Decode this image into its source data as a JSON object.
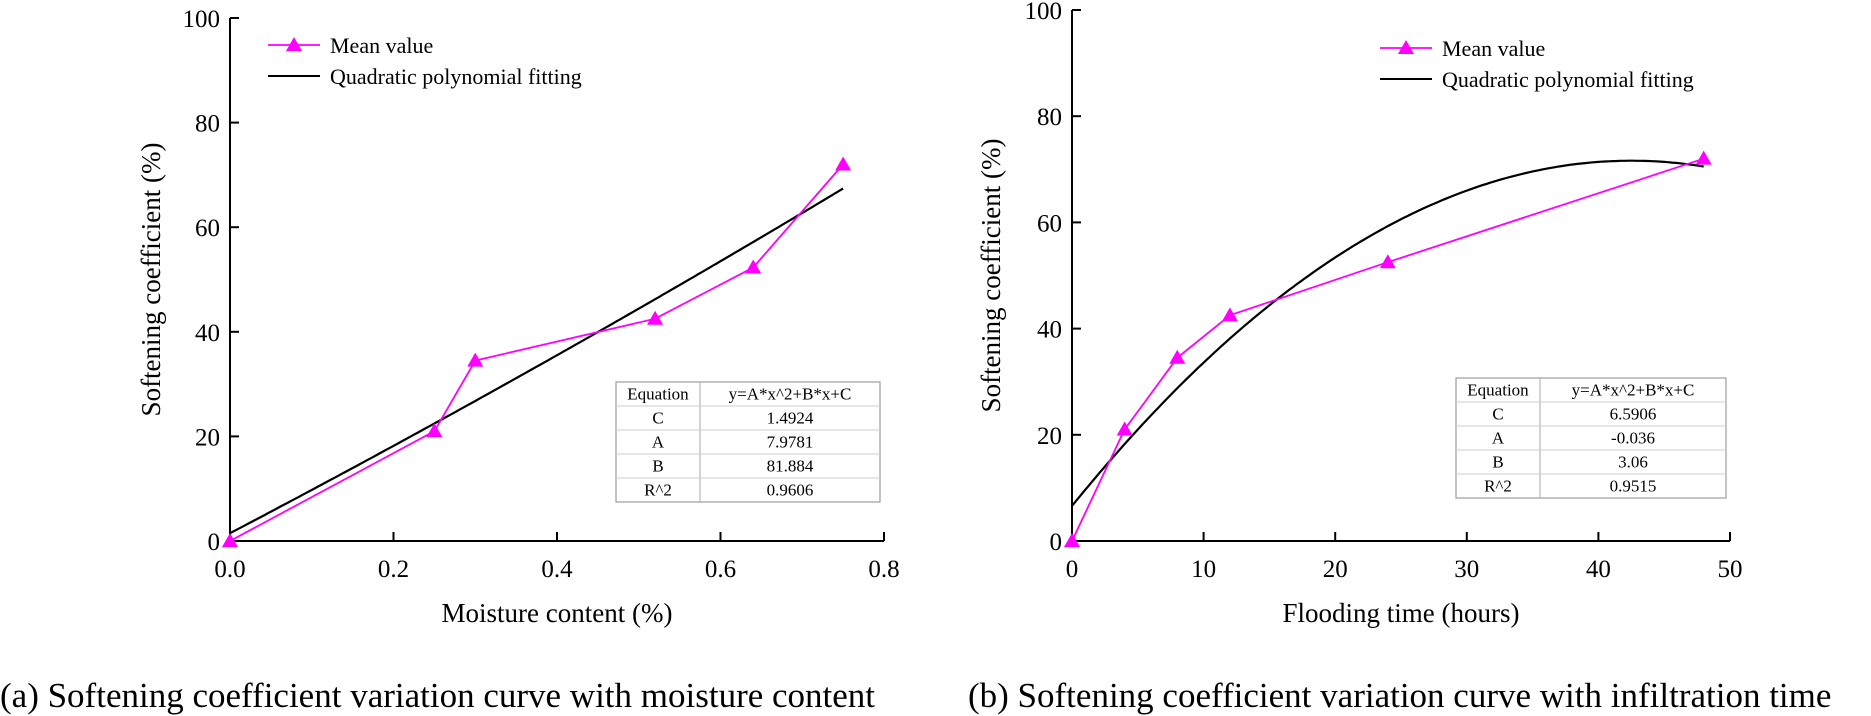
{
  "charts": [
    {
      "legend": {
        "markers_label": "Mean value",
        "fit_label": "Quadratic polynomial fitting"
      },
      "fit_table": {
        "header": [
          "Equation",
          "y=A*x^2+B*x+C"
        ],
        "rows": [
          [
            "C",
            "1.4924"
          ],
          [
            "A",
            "7.9781"
          ],
          [
            "B",
            "81.884"
          ],
          [
            "R^2",
            "0.9606"
          ]
        ]
      }
    },
    {
      "legend": {
        "markers_label": "Mean value",
        "fit_label": "Quadratic polynomial fitting"
      },
      "fit_table": {
        "header": [
          "Equation",
          "y=A*x^2+B*x+C"
        ],
        "rows": [
          [
            "C",
            "6.5906"
          ],
          [
            "A",
            "-0.036"
          ],
          [
            "B",
            "3.06"
          ],
          [
            "R^2",
            "0.9515"
          ]
        ]
      }
    }
  ],
  "captions": [
    "(a) Softening coefficient variation curve with moisture content",
    "(b) Softening coefficient variation curve with infiltration time"
  ],
  "colors": {
    "series": "#ff00ff",
    "fit": "#000000"
  },
  "chart_data": [
    {
      "type": "line",
      "xlabel": "Moisture content (%)",
      "ylabel": "Softening coefficient (%)",
      "xlim": [
        0,
        0.8
      ],
      "ylim": [
        0,
        100
      ],
      "xticks": [
        0.0,
        0.2,
        0.4,
        0.6,
        0.8
      ],
      "xtick_labels": [
        "0.0",
        "0.2",
        "0.4",
        "0.6",
        "0.8"
      ],
      "yticks": [
        0,
        20,
        40,
        60,
        80,
        100
      ],
      "ytick_labels": [
        "0",
        "20",
        "40",
        "60",
        "80",
        "100"
      ],
      "grid": false,
      "legend_position": "top-left",
      "series": [
        {
          "name": "Mean value",
          "marker": "triangle",
          "x": [
            0,
            0.25,
            0.3,
            0.52,
            0.64,
            0.75
          ],
          "y": [
            0,
            21,
            34.5,
            42.5,
            52.3,
            72
          ]
        },
        {
          "name": "Quadratic polynomial fitting",
          "kind": "fit",
          "A": 7.9781,
          "B": 81.884,
          "C": 1.4924,
          "x_range": [
            0,
            0.75
          ]
        }
      ]
    },
    {
      "type": "line",
      "xlabel": "Flooding time (hours)",
      "ylabel": "Softening coefficient (%)",
      "xlim": [
        0,
        50
      ],
      "ylim": [
        0,
        100
      ],
      "xticks": [
        0,
        10,
        20,
        30,
        40,
        50
      ],
      "xtick_labels": [
        "0",
        "10",
        "20",
        "30",
        "40",
        "50"
      ],
      "yticks": [
        0,
        20,
        40,
        60,
        80,
        100
      ],
      "ytick_labels": [
        "0",
        "20",
        "40",
        "60",
        "80",
        "100"
      ],
      "grid": false,
      "legend_position": "top-right",
      "series": [
        {
          "name": "Mean value",
          "marker": "triangle",
          "x": [
            0,
            4,
            8,
            12,
            24,
            48
          ],
          "y": [
            0,
            21,
            34.5,
            42.5,
            52.5,
            72
          ]
        },
        {
          "name": "Quadratic polynomial fitting",
          "kind": "fit",
          "A": -0.036,
          "B": 3.06,
          "C": 6.5906,
          "x_range": [
            0,
            48
          ]
        }
      ]
    }
  ]
}
